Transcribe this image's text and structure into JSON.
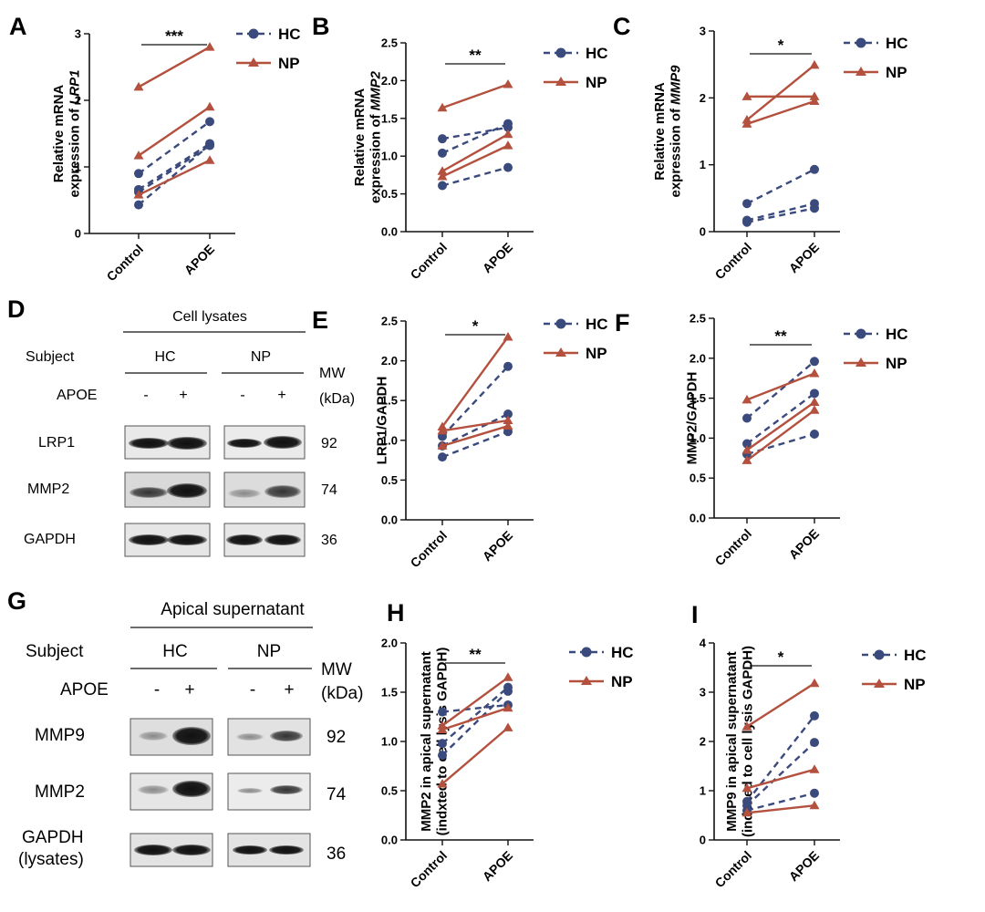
{
  "colors": {
    "hc": "#3b4a7c",
    "np": "#b3503e",
    "axis": "#111111"
  },
  "legend": {
    "hc": "HC",
    "np": "NP"
  },
  "xcategories": [
    "Control",
    "APOE"
  ],
  "panels": {
    "A": {
      "letter": "A",
      "ylabel_line1": "Relative mRNA",
      "ylabel_line2": "expression of ",
      "ylabel_italic": "LRP1",
      "sig": "***"
    },
    "B": {
      "letter": "B",
      "ylabel_line1": "Relative mRNA",
      "ylabel_line2": "expression of ",
      "ylabel_italic": "MMP2",
      "sig": "**"
    },
    "C": {
      "letter": "C",
      "ylabel_line1": "Relative mRNA",
      "ylabel_line2": "expression of ",
      "ylabel_italic": "MMP9",
      "sig": "*"
    },
    "E": {
      "letter": "E",
      "ylabel_line1": "LRP1/GAPDH",
      "sig": "*"
    },
    "F": {
      "letter": "F",
      "ylabel_line1": "MMP2/GAPDH",
      "sig": "**"
    },
    "H": {
      "letter": "H",
      "ylabel_line1": "MMP2  in apical supernatant",
      "ylabel_line2": "(indxted to cell lysis GAPDH)",
      "sig": "**"
    },
    "I": {
      "letter": "I",
      "ylabel_line1": "MMP9  in apical supernatant",
      "ylabel_line2": "(indexed to cell lysis GAPDH)",
      "sig": "*"
    }
  },
  "blotD": {
    "letter": "D",
    "header": "Cell lysates",
    "subject_label": "Subject",
    "apoe_label": "APOE",
    "groups": [
      "HC",
      "NP"
    ],
    "signs": [
      "-",
      "+",
      "-",
      "+"
    ],
    "mw_label": "MW",
    "kda_label": "(kDa)",
    "rows": [
      {
        "name": "LRP1",
        "mw": "92"
      },
      {
        "name": "MMP2",
        "mw": "74"
      },
      {
        "name": "GAPDH",
        "mw": "36"
      }
    ]
  },
  "blotG": {
    "letter": "G",
    "header": "Apical supernatant",
    "subject_label": "Subject",
    "apoe_label": "APOE",
    "groups": [
      "HC",
      "NP"
    ],
    "signs": [
      "-",
      "+",
      "-",
      "+"
    ],
    "mw_label": "MW",
    "kda_label": "(kDa)",
    "rows": [
      {
        "name": "MMP9",
        "mw": "92"
      },
      {
        "name": "MMP2",
        "mw": "74"
      },
      {
        "name": "GAPDH",
        "name2": "(lysates)",
        "mw": "36"
      }
    ]
  },
  "chart_data": [
    {
      "panel": "A",
      "type": "line",
      "categories": [
        "Control",
        "APOE"
      ],
      "ylim": [
        0,
        3
      ],
      "yticks": [
        0,
        1,
        2,
        3
      ],
      "ylabel": "Relative mRNA expression of LRP1",
      "significance": "***",
      "series": [
        {
          "name": "HC",
          "pairs": [
            [
              0.9,
              1.68
            ],
            [
              0.66,
              1.35
            ],
            [
              0.62,
              1.32
            ],
            [
              0.43,
              1.33
            ]
          ]
        },
        {
          "name": "NP",
          "pairs": [
            [
              2.2,
              2.8
            ],
            [
              1.17,
              1.9
            ],
            [
              0.58,
              1.1
            ]
          ]
        }
      ]
    },
    {
      "panel": "B",
      "type": "line",
      "categories": [
        "Control",
        "APOE"
      ],
      "ylim": [
        0,
        2.5
      ],
      "yticks": [
        0.0,
        0.5,
        1.0,
        1.5,
        2.0,
        2.5
      ],
      "ylabel": "Relative mRNA expression of MMP2",
      "significance": "**",
      "series": [
        {
          "name": "HC",
          "pairs": [
            [
              1.23,
              1.38
            ],
            [
              1.04,
              1.43
            ],
            [
              0.61,
              0.85
            ]
          ]
        },
        {
          "name": "NP",
          "pairs": [
            [
              1.64,
              1.95
            ],
            [
              0.8,
              1.29
            ],
            [
              0.73,
              1.14
            ]
          ]
        }
      ]
    },
    {
      "panel": "C",
      "type": "line",
      "categories": [
        "Control",
        "APOE"
      ],
      "ylim": [
        0,
        3
      ],
      "yticks": [
        0,
        1,
        2,
        3
      ],
      "ylabel": "Relative mRNA expression of MMP9",
      "significance": "*",
      "series": [
        {
          "name": "HC",
          "pairs": [
            [
              0.42,
              0.93
            ],
            [
              0.17,
              0.42
            ],
            [
              0.14,
              0.35
            ]
          ]
        },
        {
          "name": "NP",
          "pairs": [
            [
              2.02,
              2.02
            ],
            [
              1.67,
              2.49
            ],
            [
              1.61,
              1.95
            ]
          ]
        }
      ]
    },
    {
      "panel": "E",
      "type": "line",
      "categories": [
        "Control",
        "APOE"
      ],
      "ylim": [
        0,
        2.5
      ],
      "yticks": [
        0.0,
        0.5,
        1.0,
        1.5,
        2.0,
        2.5
      ],
      "ylabel": "LRP1/GAPDH",
      "significance": "*",
      "series": [
        {
          "name": "HC",
          "pairs": [
            [
              1.05,
              1.93
            ],
            [
              0.93,
              1.33
            ],
            [
              0.79,
              1.11
            ]
          ]
        },
        {
          "name": "NP",
          "pairs": [
            [
              1.17,
              2.3
            ],
            [
              1.12,
              1.25
            ],
            [
              0.93,
              1.18
            ]
          ]
        }
      ]
    },
    {
      "panel": "F",
      "type": "line",
      "categories": [
        "Control",
        "APOE"
      ],
      "ylim": [
        0,
        2.5
      ],
      "yticks": [
        0.0,
        0.5,
        1.0,
        1.5,
        2.0,
        2.5
      ],
      "ylabel": "MMP2/GAPDH",
      "significance": "**",
      "series": [
        {
          "name": "HC",
          "pairs": [
            [
              1.25,
              1.96
            ],
            [
              0.93,
              1.56
            ],
            [
              0.8,
              1.05
            ]
          ]
        },
        {
          "name": "NP",
          "pairs": [
            [
              1.48,
              1.81
            ],
            [
              0.85,
              1.45
            ],
            [
              0.72,
              1.35
            ]
          ]
        }
      ]
    },
    {
      "panel": "H",
      "type": "line",
      "categories": [
        "Control",
        "APOE"
      ],
      "ylim": [
        0,
        2.0
      ],
      "yticks": [
        0.0,
        0.5,
        1.0,
        1.5,
        2.0
      ],
      "ylabel": "MMP2 in apical supernatant (indxted to cell lysis GAPDH)",
      "significance": "**",
      "series": [
        {
          "name": "HC",
          "pairs": [
            [
              1.3,
              1.37
            ],
            [
              0.98,
              1.55
            ],
            [
              0.86,
              1.51
            ]
          ]
        },
        {
          "name": "NP",
          "pairs": [
            [
              1.16,
              1.65
            ],
            [
              1.12,
              1.34
            ],
            [
              0.57,
              1.14
            ]
          ]
        }
      ]
    },
    {
      "panel": "I",
      "type": "line",
      "categories": [
        "Control",
        "APOE"
      ],
      "ylim": [
        0,
        4
      ],
      "yticks": [
        0,
        1,
        2,
        3,
        4
      ],
      "ylabel": "MMP9 in apical supernatant (indexed to cell lysis GAPDH)",
      "significance": "*",
      "series": [
        {
          "name": "HC",
          "pairs": [
            [
              0.78,
              2.52
            ],
            [
              0.7,
              1.98
            ],
            [
              0.6,
              0.95
            ]
          ]
        },
        {
          "name": "NP",
          "pairs": [
            [
              2.3,
              3.18
            ],
            [
              1.05,
              1.43
            ],
            [
              0.55,
              0.7
            ]
          ]
        }
      ]
    }
  ]
}
